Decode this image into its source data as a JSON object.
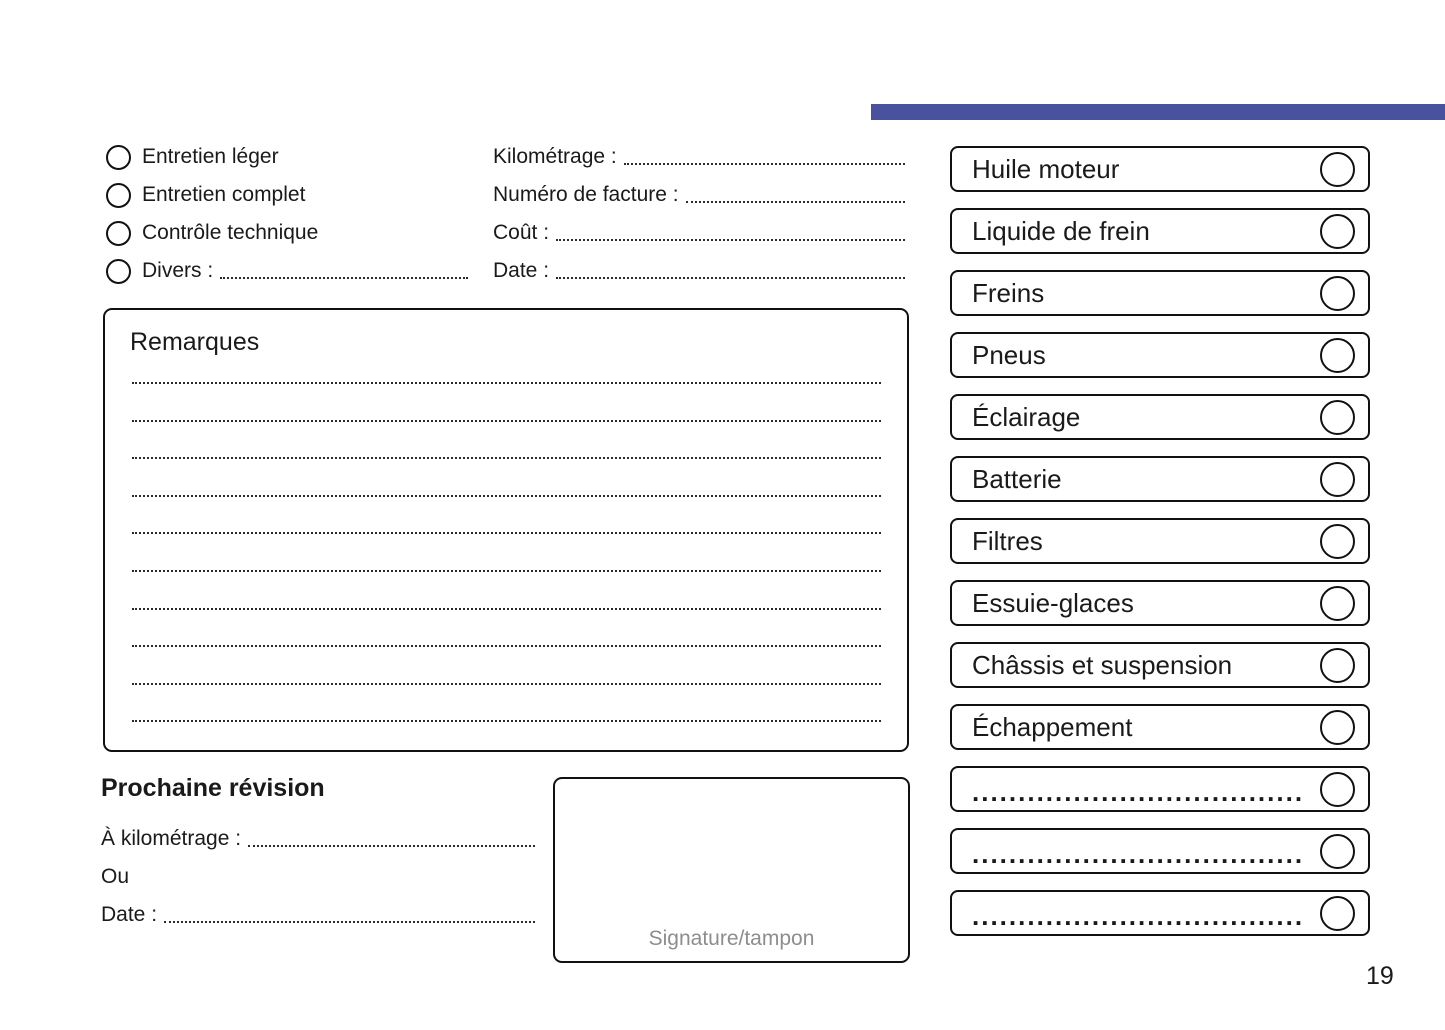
{
  "accent_color": "#4a519d",
  "service_types": {
    "items": [
      {
        "label": "Entretien léger"
      },
      {
        "label": "Entretien complet"
      },
      {
        "label": "Contrôle technique"
      },
      {
        "label": "Divers :",
        "has_line": true
      }
    ]
  },
  "invoice_fields": {
    "items": [
      {
        "label": "Kilométrage :"
      },
      {
        "label": "Numéro de facture :"
      },
      {
        "label": "Coût :"
      },
      {
        "label": "Date :"
      }
    ]
  },
  "remarks": {
    "title": "Remarques",
    "line_count": 10
  },
  "next_service": {
    "title": "Prochaine révision",
    "mileage_label": "À kilométrage :",
    "or_label": "Ou",
    "date_label": "Date :"
  },
  "signature": {
    "label": "Signature/tampon"
  },
  "checklist": {
    "items": [
      {
        "label": "Huile moteur"
      },
      {
        "label": "Liquide de frein"
      },
      {
        "label": "Freins"
      },
      {
        "label": "Pneus"
      },
      {
        "label": "Éclairage"
      },
      {
        "label": "Batterie"
      },
      {
        "label": "Filtres"
      },
      {
        "label": "Essuie-glaces"
      },
      {
        "label": "Châssis et suspension"
      },
      {
        "label": "Échappement"
      },
      {
        "label": "....................................",
        "blank": true
      },
      {
        "label": "....................................",
        "blank": true
      },
      {
        "label": "....................................",
        "blank": true
      }
    ]
  },
  "page_number": "19"
}
